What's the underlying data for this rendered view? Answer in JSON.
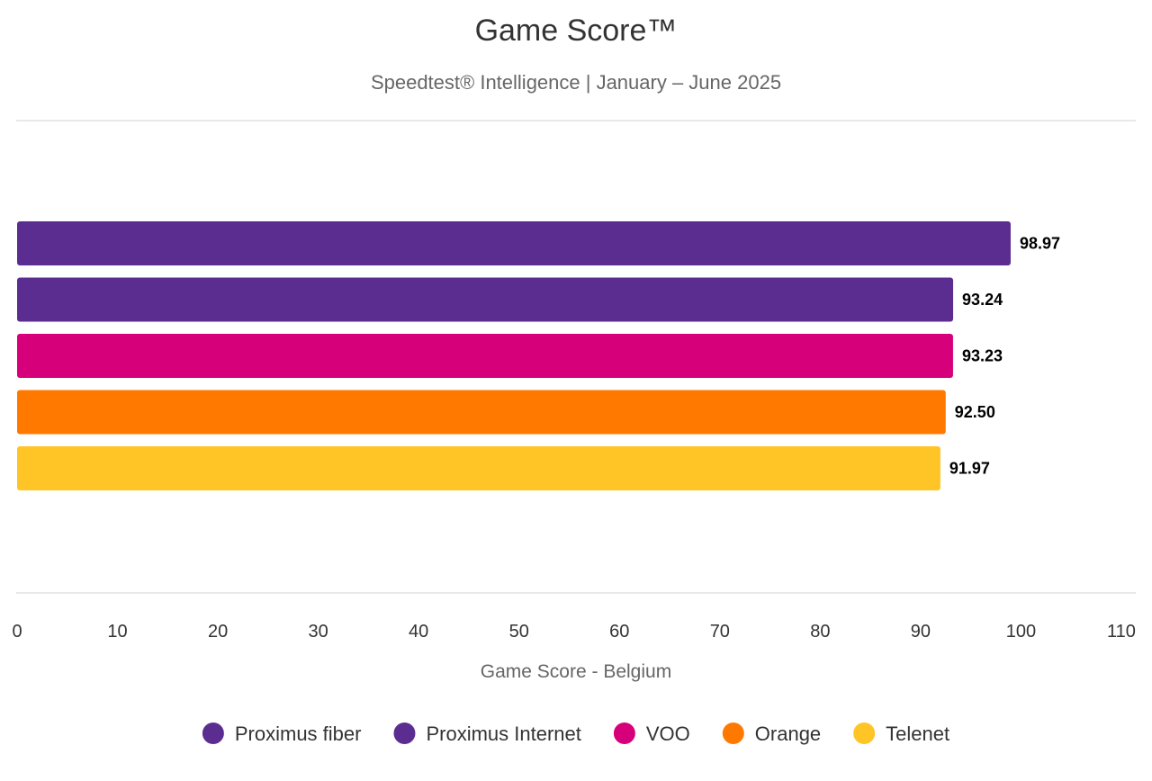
{
  "chart_data": {
    "type": "bar",
    "orientation": "horizontal",
    "title": "Game Score™",
    "subtitle": "Speedtest® Intelligence | January – June 2025",
    "xlabel": "Game Score - Belgium",
    "xlim": [
      0,
      110
    ],
    "ticks": [
      "0",
      "10",
      "20",
      "30",
      "40",
      "50",
      "60",
      "70",
      "80",
      "90",
      "100",
      "110"
    ],
    "legend_position": "bottom-center",
    "series": [
      {
        "name": "Proximus fiber",
        "value": 98.97,
        "label": "98.97",
        "color": "#5c2d91"
      },
      {
        "name": "Proximus Internet",
        "value": 93.24,
        "label": "93.24",
        "color": "#5c2d91"
      },
      {
        "name": "VOO",
        "value": 93.23,
        "label": "93.23",
        "color": "#d6007a"
      },
      {
        "name": "Orange",
        "value": 92.5,
        "label": "92.50",
        "color": "#ff7900"
      },
      {
        "name": "Telenet",
        "value": 91.97,
        "label": "91.97",
        "color": "#ffc425"
      }
    ]
  }
}
